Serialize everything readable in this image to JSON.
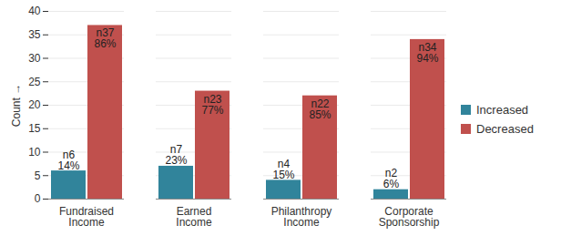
{
  "chart_data": {
    "type": "bar",
    "y_label": "Count",
    "categories": [
      "Fundraised Income",
      "Earned Income",
      "Philanthropy Income",
      "Corporate Sponsorship"
    ],
    "series": [
      {
        "name": "Increased",
        "color": "#31849b",
        "values": [
          6,
          7,
          4,
          2
        ],
        "value_labels": [
          "n6\n14%",
          "n7\n23%",
          "n4\n15%",
          "n2\n6%"
        ]
      },
      {
        "name": "Decreased",
        "color": "#c0504d",
        "values": [
          37,
          23,
          22,
          34
        ],
        "value_labels": [
          "n37\n86%",
          "n23\n77%",
          "n22\n85%",
          "n34\n94%"
        ]
      }
    ],
    "ylim": [
      0,
      40
    ],
    "yticks": [
      0,
      5,
      10,
      15,
      20,
      25,
      30,
      35,
      40
    ],
    "grid": true,
    "legend": "right",
    "data_labels": true
  }
}
